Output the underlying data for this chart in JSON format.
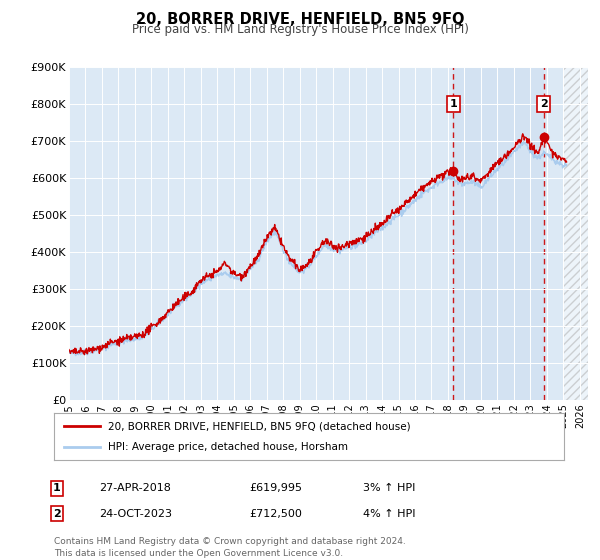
{
  "title": "20, BORRER DRIVE, HENFIELD, BN5 9FQ",
  "subtitle": "Price paid vs. HM Land Registry's House Price Index (HPI)",
  "ylim": [
    0,
    900000
  ],
  "xlim_left": 1995,
  "xlim_right": 2026.5,
  "yticks": [
    0,
    100000,
    200000,
    300000,
    400000,
    500000,
    600000,
    700000,
    800000,
    900000
  ],
  "ytick_labels": [
    "£0",
    "£100K",
    "£200K",
    "£300K",
    "£400K",
    "£500K",
    "£600K",
    "£700K",
    "£800K",
    "£900K"
  ],
  "xticks": [
    1995,
    1996,
    1997,
    1998,
    1999,
    2000,
    2001,
    2002,
    2003,
    2004,
    2005,
    2006,
    2007,
    2008,
    2009,
    2010,
    2011,
    2012,
    2013,
    2014,
    2015,
    2016,
    2017,
    2018,
    2019,
    2020,
    2021,
    2022,
    2023,
    2024,
    2025,
    2026
  ],
  "background_color": "#dce9f5",
  "fig_bg_color": "#ffffff",
  "red_line_color": "#cc0000",
  "blue_line_color": "#aaccee",
  "marker1_x": 2018.32,
  "marker1_y": 619995,
  "marker2_x": 2023.81,
  "marker2_y": 712500,
  "vline1_x": 2018.32,
  "vline2_x": 2023.81,
  "hatch_start": 2025.0,
  "legend_label_red": "20, BORRER DRIVE, HENFIELD, BN5 9FQ (detached house)",
  "legend_label_blue": "HPI: Average price, detached house, Horsham",
  "annotation1_label": "1",
  "annotation1_date": "27-APR-2018",
  "annotation1_price": "£619,995",
  "annotation1_hpi": "3% ↑ HPI",
  "annotation2_label": "2",
  "annotation2_date": "24-OCT-2023",
  "annotation2_price": "£712,500",
  "annotation2_hpi": "4% ↑ HPI",
  "footer": "Contains HM Land Registry data © Crown copyright and database right 2024.\nThis data is licensed under the Open Government Licence v3.0."
}
